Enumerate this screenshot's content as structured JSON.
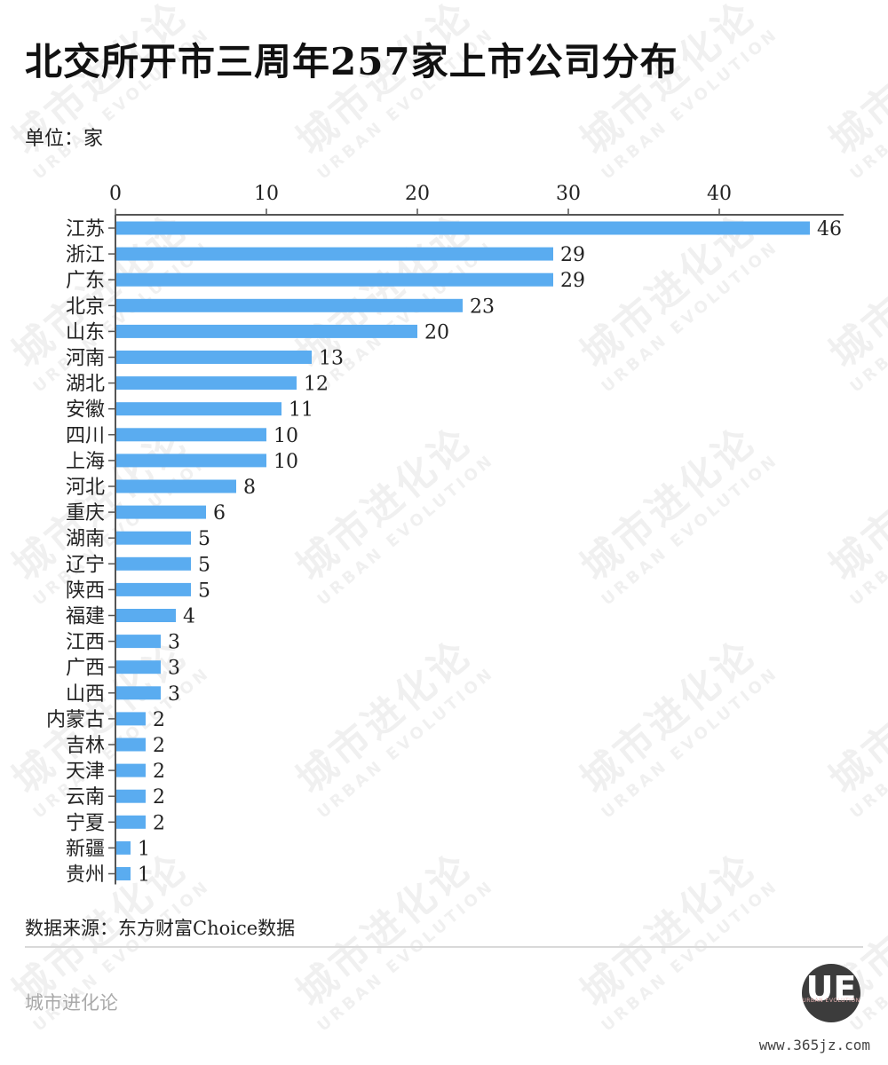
{
  "header": {
    "title": "北交所开市三周年257家上市公司分布",
    "unit": "单位：家"
  },
  "chart_data": {
    "type": "bar",
    "orientation": "horizontal",
    "categories": [
      "江苏",
      "浙江",
      "广东",
      "北京",
      "山东",
      "河南",
      "湖北",
      "安徽",
      "四川",
      "上海",
      "河北",
      "重庆",
      "湖南",
      "辽宁",
      "陕西",
      "福建",
      "江西",
      "广西",
      "山西",
      "内蒙古",
      "吉林",
      "天津",
      "云南",
      "宁夏",
      "新疆",
      "贵州"
    ],
    "values": [
      46,
      29,
      29,
      23,
      20,
      13,
      12,
      11,
      10,
      10,
      8,
      6,
      5,
      5,
      5,
      4,
      3,
      3,
      3,
      2,
      2,
      2,
      2,
      2,
      1,
      1
    ],
    "xticks": [
      0,
      10,
      20,
      30,
      40
    ],
    "xlim": [
      0,
      48
    ],
    "grid": false,
    "data_labels": true,
    "bar_color": "#5aacf0"
  },
  "footer": {
    "source": "数据来源：东方财富Choice数据",
    "brand": "城市进化论",
    "logo_mark": "UE",
    "logo_sub": "URBAN EVOLUTION",
    "site": "www.365jz.com"
  },
  "watermark": {
    "zh": "城市进化论",
    "en": "URBAN EVOLUTION"
  },
  "colors": {
    "bar": "#5aacf0",
    "axis": "#555555",
    "text": "#222222"
  }
}
